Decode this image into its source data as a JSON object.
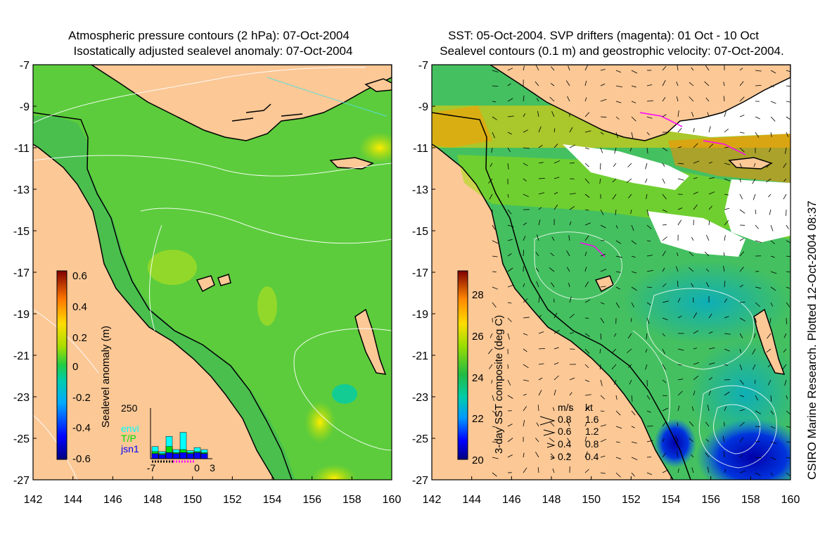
{
  "left_panel": {
    "title_line1": "Atmospheric pressure contours (2 hPa): 07-Oct-2004",
    "title_line2": "Isostatically adjusted sealevel anomaly: 07-Oct-2004",
    "colorbar_label": "Sealevel anomaly (m)",
    "colorbar_ticks": [
      "0.6",
      "0.4",
      "0.2",
      "0",
      "-0.2",
      "-0.4",
      "-0.6"
    ],
    "colorbar_range": [
      -0.6,
      0.6
    ],
    "x_ticks": [
      "142",
      "144",
      "146",
      "148",
      "150",
      "152",
      "154",
      "156",
      "158",
      "160"
    ],
    "y_ticks": [
      "-7",
      "-9",
      "-11",
      "-13",
      "-15",
      "-17",
      "-19",
      "-21",
      "-23",
      "-25",
      "-27"
    ],
    "histogram": {
      "y_max_label": "250",
      "x_labels": [
        "-7",
        "0",
        "3"
      ],
      "legend": [
        {
          "label": "envi",
          "color": "#00ffff"
        },
        {
          "label": "T/P",
          "color": "#00dd00"
        },
        {
          "label": "jsn1",
          "color": "#0000ff"
        }
      ],
      "envi": [
        60,
        35,
        110,
        45,
        130,
        40,
        55,
        45
      ],
      "tp": [
        35,
        25,
        60,
        30,
        45,
        30,
        35,
        30
      ],
      "jsn1": [
        25,
        20,
        30,
        25,
        30,
        25,
        30,
        25
      ]
    }
  },
  "right_panel": {
    "title_line1": "SST: 05-Oct-2004. SVP drifters (magenta): 01 Oct - 10 Oct",
    "title_line2": "Sealevel contours (0.1 m) and geostrophic velocity: 07-Oct-2004.",
    "colorbar_label": "3-day SST composite (deg C)",
    "colorbar_ticks": [
      "28",
      "26",
      "24",
      "22",
      "20"
    ],
    "colorbar_range": [
      20,
      29
    ],
    "x_ticks": [
      "142",
      "144",
      "146",
      "148",
      "150",
      "152",
      "154",
      "156",
      "158",
      "160"
    ],
    "y_ticks": [
      "-7",
      "-9",
      "-11",
      "-13",
      "-15",
      "-17",
      "-19",
      "-21",
      "-23",
      "-25",
      "-27"
    ],
    "vector_legend": {
      "header_ms": "m/s",
      "header_kt": "kt",
      "rows": [
        {
          "ms": "0.8",
          "kt": "1.6"
        },
        {
          "ms": "0.6",
          "kt": "1.2"
        },
        {
          "ms": "0.4",
          "kt": "0.8"
        },
        {
          "ms": "0.2",
          "kt": "0.4"
        }
      ]
    }
  },
  "credit": "CSIRO Marine Research. Plotted 12-Oct-2004 08:37",
  "colors": {
    "land": "#fbc896",
    "ocean_left": "#5ccc3c",
    "ocean_right": "#44c060",
    "cloud": "#ffffff",
    "coast": "#000000",
    "drifter": "#ff00ff"
  }
}
